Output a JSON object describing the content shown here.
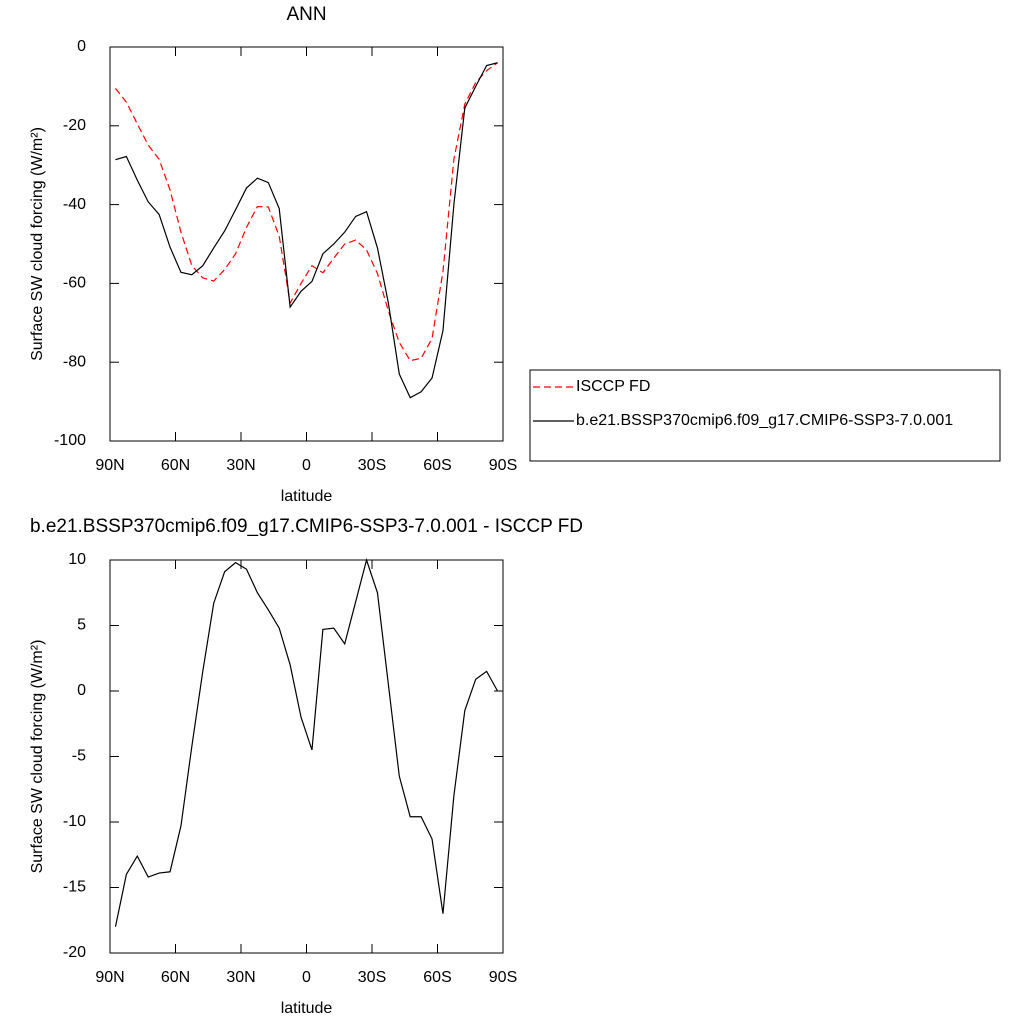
{
  "chart_data": [
    {
      "type": "line",
      "title": "ANN",
      "x_label": "latitude",
      "y_label": "Surface SW cloud forcing (W/m²)",
      "x": [
        87.5,
        82.5,
        77.5,
        72.5,
        67.5,
        62.5,
        57.5,
        52.5,
        47.5,
        42.5,
        37.5,
        32.5,
        27.5,
        22.5,
        17.5,
        12.5,
        7.5,
        2.5,
        -2.5,
        -7.5,
        -12.5,
        -17.5,
        -22.5,
        -27.5,
        -32.5,
        -37.5,
        -42.5,
        -47.5,
        -52.5,
        -57.5,
        -62.5,
        -67.5,
        -72.5,
        -77.5,
        -82.5,
        -87.5
      ],
      "xlim": [
        90,
        -90
      ],
      "xticks": [
        {
          "value": 90,
          "label": "90N"
        },
        {
          "value": 60,
          "label": "60N"
        },
        {
          "value": 30,
          "label": "30N"
        },
        0,
        {
          "value": -30,
          "label": "30S"
        },
        {
          "value": -60,
          "label": "60S"
        },
        {
          "value": -90,
          "label": "90S"
        }
      ],
      "ylim": [
        -100,
        0
      ],
      "yticks": [
        0,
        -20,
        -40,
        -60,
        -80,
        -100
      ],
      "legend": "right",
      "series": [
        {
          "name": "ISCCP FD",
          "color": "#ff0000",
          "dash": "dashed",
          "values": [
            -10.5,
            -14,
            -19.5,
            -24.9,
            -28.5,
            -36.3,
            -47,
            -55.5,
            -58.6,
            -59.4,
            -56.5,
            -52.5,
            -45.8,
            -40.5,
            -40.6,
            -48,
            -65,
            -60,
            -55.5,
            -57.3,
            -53.6,
            -50,
            -49,
            -51.5,
            -57.5,
            -67,
            -75,
            -79.6,
            -79,
            -74,
            -57,
            -28.5,
            -14.5,
            -9,
            -6,
            -4
          ]
        },
        {
          "name": "b.e21.BSSP370cmip6.f09_g17.CMIP6-SSP3-7.0.001",
          "color": "#000000",
          "dash": "solid",
          "values": [
            -28.6,
            -27.8,
            -33.8,
            -39.3,
            -42.5,
            -50.8,
            -57.2,
            -57.8,
            -55.5,
            -51,
            -46.7,
            -41.3,
            -35.8,
            -33.3,
            -34.4,
            -41,
            -66,
            -62,
            -59.5,
            -52.5,
            -50,
            -47,
            -43,
            -41.8,
            -51,
            -65,
            -83,
            -89,
            -87.5,
            -84,
            -72,
            -40,
            -15.5,
            -10,
            -4.7,
            -4
          ]
        }
      ]
    },
    {
      "type": "line",
      "title": "b.e21.BSSP370cmip6.f09_g17.CMIP6-SSP3-7.0.001 - ISCCP FD",
      "x_label": "latitude",
      "y_label": "Surface SW cloud forcing (W/m²)",
      "x": [
        87.5,
        82.5,
        77.5,
        72.5,
        67.5,
        62.5,
        57.5,
        52.5,
        47.5,
        42.5,
        37.5,
        32.5,
        27.5,
        22.5,
        17.5,
        12.5,
        7.5,
        2.5,
        -2.5,
        -7.5,
        -12.5,
        -17.5,
        -22.5,
        -27.5,
        -32.5,
        -37.5,
        -42.5,
        -47.5,
        -52.5,
        -57.5,
        -62.5,
        -67.5,
        -72.5,
        -77.5,
        -82.5,
        -87.5
      ],
      "xlim": [
        90,
        -90
      ],
      "xticks": [
        {
          "value": 90,
          "label": "90N"
        },
        {
          "value": 60,
          "label": "60N"
        },
        {
          "value": 30,
          "label": "30N"
        },
        0,
        {
          "value": -30,
          "label": "30S"
        },
        {
          "value": -60,
          "label": "60S"
        },
        {
          "value": -90,
          "label": "90S"
        }
      ],
      "ylim": [
        -20,
        10
      ],
      "yticks": [
        10,
        5,
        0,
        -5,
        -10,
        -15,
        -20
      ],
      "series": [
        {
          "color": "#000000",
          "dash": "solid",
          "values": [
            -18,
            -14,
            -12.6,
            -14.2,
            -13.9,
            -13.8,
            -10.3,
            -4.2,
            1.5,
            6.7,
            9.1,
            9.8,
            9.3,
            7.5,
            6.2,
            4.8,
            2,
            -2,
            -4.5,
            4.7,
            4.8,
            3.6,
            6.8,
            10,
            7.5,
            0.5,
            -6.5,
            -9.6,
            -9.6,
            -11.3,
            -17,
            -8,
            -1.5,
            0.9,
            1.5,
            0
          ]
        }
      ]
    }
  ]
}
